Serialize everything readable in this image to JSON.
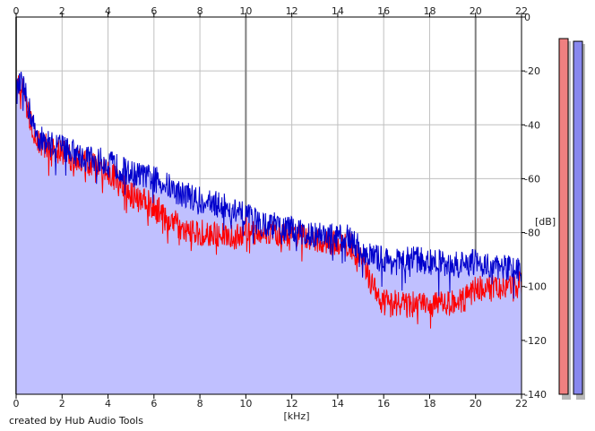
{
  "credit": "created by Hub Audio Tools",
  "chart_data": {
    "type": "area",
    "xlabel": "[kHz]",
    "ylabel": "[dB]",
    "xlim": [
      0,
      22
    ],
    "ylim": [
      -140,
      0
    ],
    "x_ticks": [
      0,
      2,
      4,
      6,
      8,
      10,
      12,
      14,
      16,
      18,
      20,
      22
    ],
    "y_ticks": [
      0,
      -20,
      -40,
      -60,
      -80,
      -100,
      -120,
      -140
    ],
    "grid": true,
    "x_axis_position": "top and bottom",
    "y_axis_position": "right",
    "colors": {
      "fill": "#c0c0ff",
      "series_blue": "#0000cc",
      "series_red": "#ff0000",
      "grid_minor": "#c0c0c0",
      "grid_major": "#808080",
      "meter_left": "#f08080",
      "meter_right": "#8888ee"
    },
    "series": [
      {
        "color": "blue",
        "x": [
          0,
          0.25,
          0.5,
          0.75,
          1,
          1.5,
          2,
          2.5,
          3,
          3.5,
          4,
          4.5,
          5,
          5.5,
          6,
          6.5,
          7,
          7.5,
          8,
          8.5,
          9,
          9.5,
          10,
          10.5,
          11,
          11.5,
          12,
          12.5,
          13,
          13.5,
          14,
          14.5,
          15,
          15.5,
          16,
          16.5,
          17,
          17.5,
          18,
          18.5,
          19,
          19.5,
          20,
          20.5,
          21,
          21.5,
          22
        ],
        "values": [
          -28,
          -24,
          -32,
          -40,
          -45,
          -47,
          -48,
          -50,
          -52,
          -53,
          -54,
          -56,
          -58,
          -59,
          -60,
          -62,
          -65,
          -66,
          -68,
          -69,
          -70,
          -72,
          -74,
          -76,
          -77,
          -78,
          -79,
          -80,
          -80,
          -81,
          -82,
          -82,
          -86,
          -89,
          -90,
          -91,
          -90,
          -90,
          -91,
          -91,
          -92,
          -92,
          -91,
          -92,
          -93,
          -93,
          -94
        ]
      },
      {
        "color": "red",
        "x": [
          0,
          0.25,
          0.5,
          0.75,
          1,
          1.5,
          2,
          2.5,
          3,
          3.5,
          4,
          4.5,
          5,
          5.5,
          6,
          6.5,
          7,
          7.5,
          8,
          8.5,
          9,
          9.5,
          10,
          10.5,
          11,
          11.5,
          12,
          12.5,
          13,
          13.5,
          14,
          14.5,
          15,
          15.5,
          16,
          16.5,
          17,
          17.5,
          18,
          18.5,
          19,
          19.5,
          20,
          20.5,
          21,
          21.5,
          22
        ],
        "values": [
          -27,
          -25,
          -34,
          -42,
          -46,
          -49,
          -50,
          -53,
          -54,
          -56,
          -57,
          -62,
          -66,
          -68,
          -70,
          -74,
          -77,
          -79,
          -80,
          -80,
          -81,
          -82,
          -79,
          -80,
          -80,
          -81,
          -82,
          -82,
          -82,
          -83,
          -84,
          -84,
          -90,
          -100,
          -106,
          -106,
          -107,
          -106,
          -107,
          -106,
          -106,
          -105,
          -101,
          -100,
          -100,
          -100,
          -99
        ]
      }
    ],
    "meters": {
      "left_peak_db": -8,
      "right_peak_db": -9
    }
  }
}
